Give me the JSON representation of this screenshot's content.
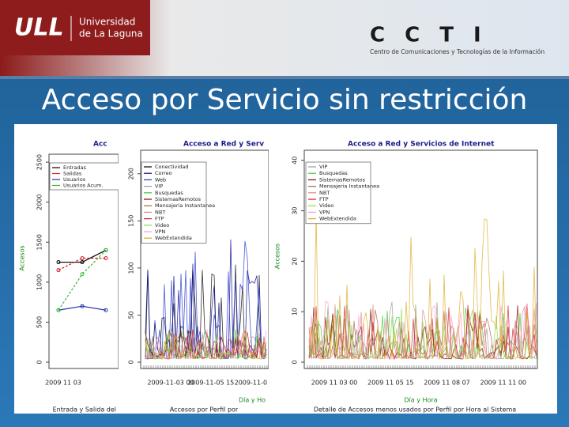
{
  "header": {
    "logo": "ULL",
    "university": [
      "Universidad",
      "de La Laguna"
    ],
    "center_logo": "C C T I",
    "center_name": "Centro de Comunicaciones y Tecnologías de la Información"
  },
  "title": "Acceso por Servicio sin restricción",
  "panels": [
    {
      "title": "Acc",
      "y_label": "Accesos",
      "ylim": [
        0,
        2600
      ],
      "yticks": [
        0,
        500,
        1000,
        1500,
        2000,
        2500
      ],
      "x_ticks": [
        "2009 11 03"
      ],
      "caption": "Entrada y Salida del Sistema por Día",
      "series": [
        {
          "name": "Entradas",
          "color": "#000000",
          "values": [
            1250,
            1250,
            1400
          ]
        },
        {
          "name": "Salidas",
          "color": "#cc2222",
          "values": [
            1150,
            1300,
            1300
          ]
        },
        {
          "name": "Usuarios",
          "color": "#2233aa",
          "values": [
            650,
            700,
            650
          ]
        },
        {
          "name": "Usuarios Acum.",
          "color": "#33bb33",
          "values": [
            650,
            1100,
            1400
          ]
        }
      ]
    },
    {
      "title": "Acceso a Red y Serv",
      "y_label": "Accesos",
      "ylim": [
        0,
        225
      ],
      "yticks": [
        0,
        50,
        100,
        150,
        200
      ],
      "x_ticks": [
        "2009-11-03 00",
        "2009-11-05 15",
        "2009-11-0"
      ],
      "x_label": "Día y Ho",
      "caption": "Accesos por Perfil por",
      "legend": [
        {
          "name": "Conectividad",
          "color": "#000000"
        },
        {
          "name": "Correo",
          "color": "#000088"
        },
        {
          "name": "Web",
          "color": "#2233cc"
        },
        {
          "name": "VIP",
          "color": "#999999"
        },
        {
          "name": "Busquedas",
          "color": "#33cc33"
        },
        {
          "name": "SistemasRemotos",
          "color": "#880000"
        },
        {
          "name": "Mensajeria Instantanea",
          "color": "#aa6644"
        },
        {
          "name": "NBT",
          "color": "#dd8888"
        },
        {
          "name": "FTP",
          "color": "#cc2222"
        },
        {
          "name": "Video",
          "color": "#88dd44"
        },
        {
          "name": "VPN",
          "color": "#ff99cc"
        },
        {
          "name": "WebExtendida",
          "color": "#ddaa22"
        }
      ]
    },
    {
      "title": "Acceso a Red y Servicios de Internet",
      "y_label": "Accesos",
      "ylim": [
        0,
        42
      ],
      "yticks": [
        0,
        10,
        20,
        30,
        40
      ],
      "x_ticks": [
        "2009 11 03 00",
        "2009 11 05 15",
        "2009 11 08 07",
        "2009 11 11 00"
      ],
      "x_label": "Día y Hora",
      "caption": "Detalle de Accesos menos usados por Perfil por Hora al Sistema",
      "legend": [
        {
          "name": "VIP",
          "color": "#999999"
        },
        {
          "name": "Busquedas",
          "color": "#33cc33"
        },
        {
          "name": "SistemasRemotos",
          "color": "#880000"
        },
        {
          "name": "Mensajeria Instantanea",
          "color": "#aa6644"
        },
        {
          "name": "NBT",
          "color": "#dd8888"
        },
        {
          "name": "FTP",
          "color": "#cc2222"
        },
        {
          "name": "Video",
          "color": "#88dd44"
        },
        {
          "name": "VPN",
          "color": "#ff99cc"
        },
        {
          "name": "WebExtendida",
          "color": "#ddaa22"
        }
      ]
    }
  ]
}
